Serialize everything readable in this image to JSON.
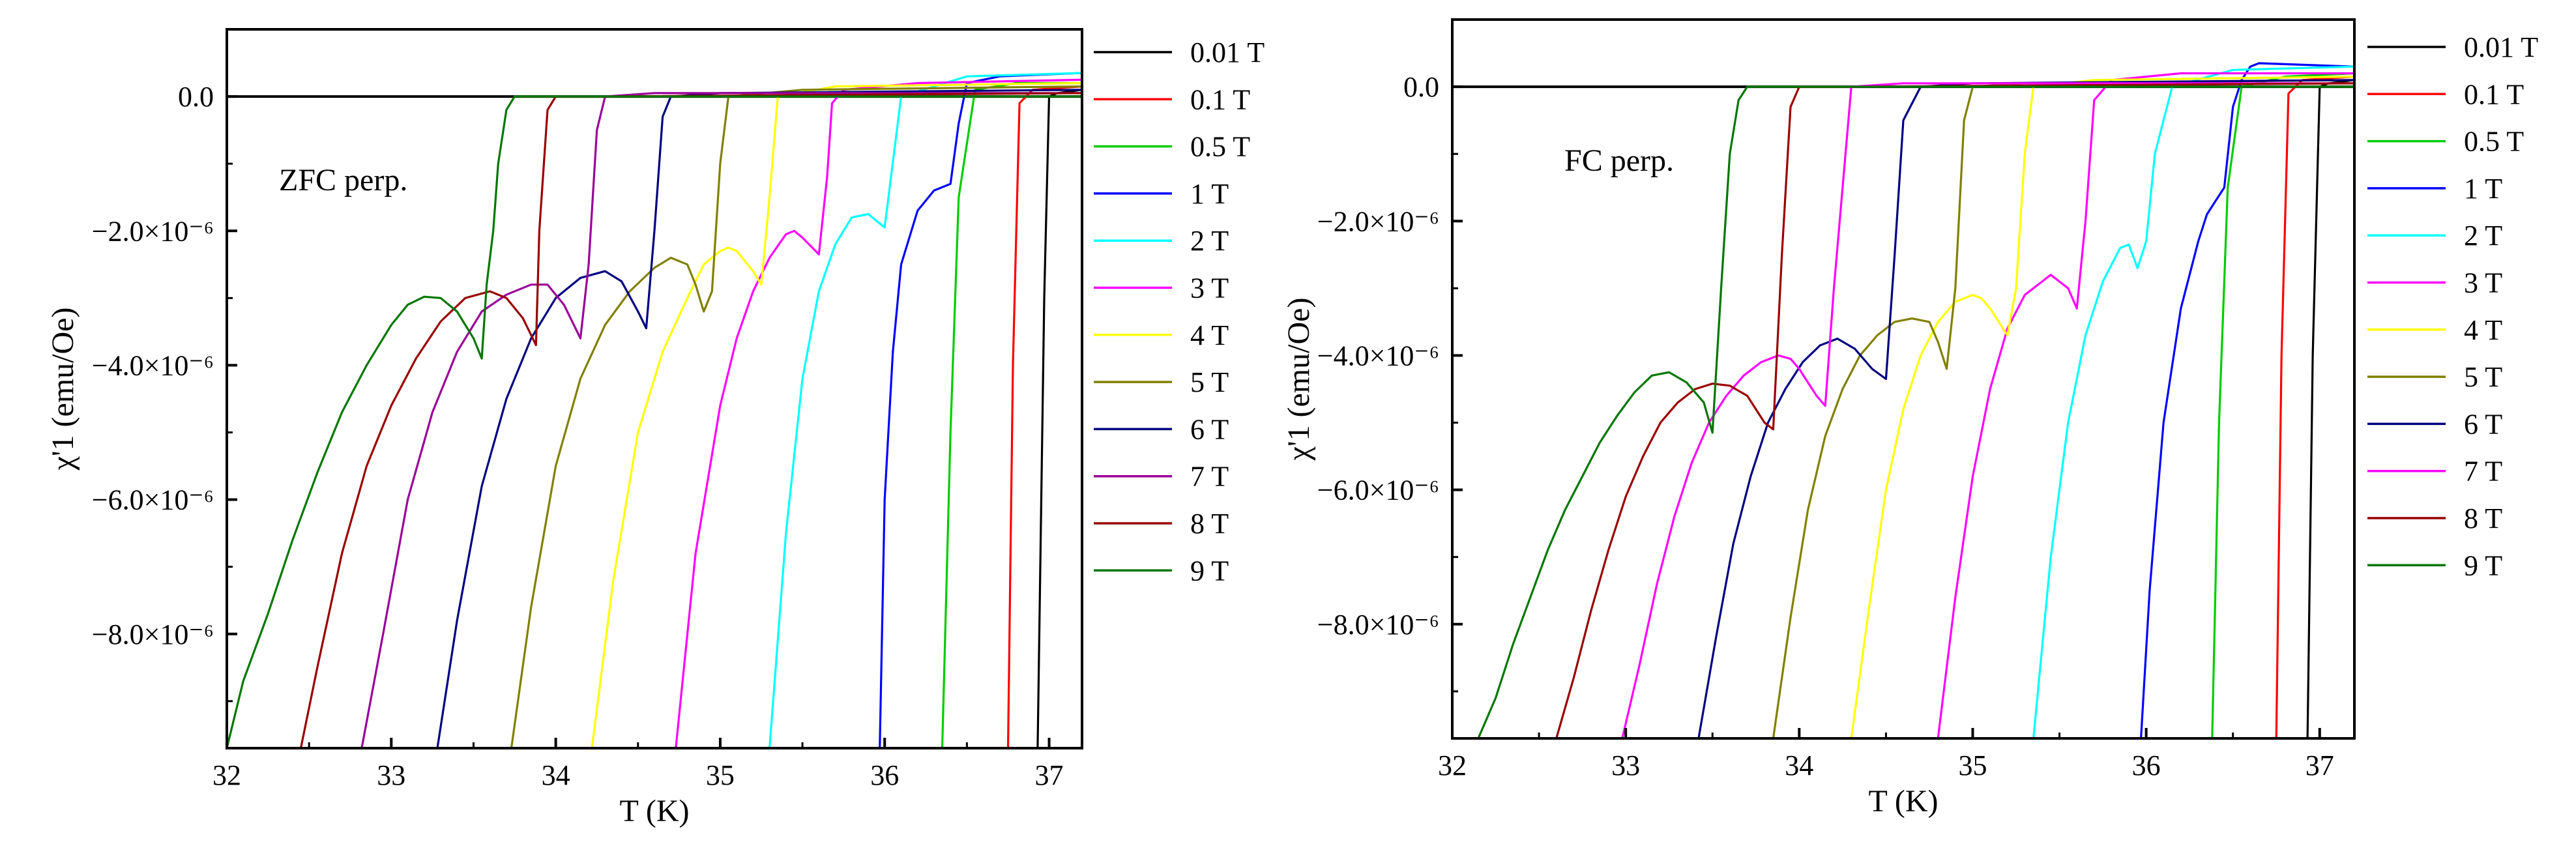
{
  "chart_data": [
    {
      "type": "line",
      "annotation": "ZFC perp.",
      "xlabel": "T (K)",
      "ylabel": "χ'1 (emu/Oe)",
      "xlim": [
        32,
        37.2
      ],
      "ylim": [
        -9.7e-06,
        1e-06
      ],
      "x_ticks": [
        "32",
        "33",
        "34",
        "35",
        "36",
        "37"
      ],
      "y_ticks": [
        "0.0",
        "−2.0×10⁻⁶",
        "−4.0×10⁻⁶",
        "−6.0×10⁻⁶",
        "−8.0×10⁻⁶"
      ],
      "zero_line": true,
      "legend_position": "right",
      "series": [
        {
          "name": "0.01 T",
          "color": "#000000",
          "x": [
            36.93,
            36.97,
            37.0,
            37.05,
            37.2
          ],
          "y": [
            -9.7e-06,
            -3e-06,
            0.0,
            5e-08,
            1e-07
          ]
        },
        {
          "name": "0.1 T",
          "color": "#ff0000",
          "x": [
            36.75,
            36.78,
            36.82,
            36.9,
            37.2
          ],
          "y": [
            -9.7e-06,
            -4e-06,
            -1e-07,
            1e-07,
            1.5e-07
          ]
        },
        {
          "name": "0.5 T",
          "color": "#00cc00",
          "x": [
            36.35,
            36.4,
            36.45,
            36.55,
            36.8,
            37.2
          ],
          "y": [
            -9.7e-06,
            -5e-06,
            -1.5e-06,
            1e-07,
            2e-07,
            2e-07
          ]
        },
        {
          "name": "1 T",
          "color": "#0000ff",
          "x": [
            35.97,
            36.0,
            36.05,
            36.1,
            36.2,
            36.3,
            36.4,
            36.45,
            36.5,
            36.7,
            37.2
          ],
          "y": [
            -9.7e-06,
            -6e-06,
            -3.8e-06,
            -2.5e-06,
            -1.7e-06,
            -1.4e-06,
            -1.3e-06,
            -4e-07,
            2e-07,
            3e-07,
            3.5e-07
          ]
        },
        {
          "name": "2 T",
          "color": "#00ffff",
          "x": [
            35.3,
            35.4,
            35.5,
            35.6,
            35.7,
            35.8,
            35.9,
            35.95,
            36.0,
            36.1,
            36.5,
            37.2
          ],
          "y": [
            -9.7e-06,
            -6.5e-06,
            -4.2e-06,
            -2.9e-06,
            -2.2e-06,
            -1.8e-06,
            -1.75e-06,
            -1.85e-06,
            -1.95e-06,
            0.0,
            3e-07,
            3.5e-07
          ]
        },
        {
          "name": "3 T",
          "color": "#ff00ff",
          "x": [
            34.73,
            34.85,
            35.0,
            35.1,
            35.2,
            35.3,
            35.4,
            35.45,
            35.5,
            35.6,
            35.65,
            35.68,
            35.75,
            36.2,
            37.2
          ],
          "y": [
            -9.7e-06,
            -6.8e-06,
            -4.6e-06,
            -3.6e-06,
            -2.9e-06,
            -2.4e-06,
            -2.05e-06,
            -2e-06,
            -2.1e-06,
            -2.35e-06,
            -1.2e-06,
            -1e-07,
            1e-07,
            2e-07,
            2.5e-07
          ]
        },
        {
          "name": "4 T",
          "color": "#ffff00",
          "x": [
            34.22,
            34.35,
            34.5,
            34.65,
            34.8,
            34.9,
            35.0,
            35.05,
            35.1,
            35.15,
            35.2,
            35.25,
            35.3,
            35.35,
            35.7,
            37.2
          ],
          "y": [
            -9.7e-06,
            -7.2e-06,
            -5e-06,
            -3.8e-06,
            -3e-06,
            -2.5e-06,
            -2.3e-06,
            -2.25e-06,
            -2.3e-06,
            -2.45e-06,
            -2.6e-06,
            -2.8e-06,
            -1.5e-06,
            0.0,
            1.5e-07,
            2e-07
          ]
        },
        {
          "name": "5 T",
          "color": "#808000",
          "x": [
            33.73,
            33.85,
            34.0,
            34.15,
            34.3,
            34.45,
            34.6,
            34.7,
            34.8,
            34.85,
            34.9,
            34.95,
            35.0,
            35.05,
            35.5,
            37.2
          ],
          "y": [
            -9.7e-06,
            -7.6e-06,
            -5.5e-06,
            -4.2e-06,
            -3.4e-06,
            -2.9e-06,
            -2.55e-06,
            -2.4e-06,
            -2.5e-06,
            -2.8e-06,
            -3.2e-06,
            -2.9e-06,
            -1e-06,
            0.0,
            1e-07,
            1.5e-07
          ]
        },
        {
          "name": "6 T",
          "color": "#000080",
          "x": [
            33.28,
            33.4,
            33.55,
            33.7,
            33.85,
            34.0,
            34.15,
            34.3,
            34.4,
            34.5,
            34.55,
            34.6,
            34.65,
            34.7,
            35.0,
            37.2
          ],
          "y": [
            -9.7e-06,
            -7.8e-06,
            -5.8e-06,
            -4.5e-06,
            -3.6e-06,
            -3e-06,
            -2.7e-06,
            -2.6e-06,
            -2.75e-06,
            -3.2e-06,
            -3.45e-06,
            -2e-06,
            -3e-07,
            0.0,
            5e-08,
            1e-07
          ]
        },
        {
          "name": "7 T",
          "color": "#990099",
          "x": [
            32.82,
            32.95,
            33.1,
            33.25,
            33.4,
            33.55,
            33.7,
            33.85,
            33.95,
            34.05,
            34.15,
            34.2,
            34.25,
            34.3,
            34.6,
            37.2
          ],
          "y": [
            -9.7e-06,
            -8e-06,
            -6e-06,
            -4.7e-06,
            -3.8e-06,
            -3.2e-06,
            -2.95e-06,
            -2.8e-06,
            -2.8e-06,
            -3.1e-06,
            -3.6e-06,
            -2.5e-06,
            -5e-07,
            0.0,
            5e-08,
            5e-08
          ]
        },
        {
          "name": "8 T",
          "color": "#990000",
          "x": [
            32.45,
            32.55,
            32.7,
            32.85,
            33.0,
            33.15,
            33.3,
            33.45,
            33.6,
            33.7,
            33.8,
            33.88,
            33.9,
            33.95,
            34.0,
            34.3,
            37.2
          ],
          "y": [
            -9.7e-06,
            -8.5e-06,
            -6.8e-06,
            -5.5e-06,
            -4.6e-06,
            -3.9e-06,
            -3.35e-06,
            -3e-06,
            -2.9e-06,
            -3e-06,
            -3.3e-06,
            -3.7e-06,
            -2e-06,
            -2e-07,
            0.0,
            0.0,
            5e-08
          ]
        },
        {
          "name": "9 T",
          "color": "#007700",
          "x": [
            32.0,
            32.1,
            32.25,
            32.4,
            32.55,
            32.7,
            32.85,
            33.0,
            33.1,
            33.2,
            33.3,
            33.4,
            33.5,
            33.55,
            33.58,
            33.62,
            33.65,
            33.7,
            33.75,
            33.85,
            34.0,
            37.2
          ],
          "y": [
            -9.7e-06,
            -8.7e-06,
            -7.7e-06,
            -6.6e-06,
            -5.6e-06,
            -4.7e-06,
            -4e-06,
            -3.4e-06,
            -3.1e-06,
            -2.98e-06,
            -3e-06,
            -3.2e-06,
            -3.6e-06,
            -3.9e-06,
            -2.8e-06,
            -2e-06,
            -1e-06,
            -2e-07,
            0.0,
            0.0,
            0.0,
            0.0
          ]
        }
      ]
    },
    {
      "type": "line",
      "annotation": "FC perp.",
      "xlabel": "T (K)",
      "ylabel": "χ'1 (emu/Oe)",
      "xlim": [
        32,
        37.2
      ],
      "ylim": [
        -9.7e-06,
        1e-06
      ],
      "x_ticks": [
        "32",
        "33",
        "34",
        "35",
        "36",
        "37"
      ],
      "y_ticks": [
        "0.0",
        "−2.0×10⁻⁶",
        "−4.0×10⁻⁶",
        "−6.0×10⁻⁶",
        "−8.0×10⁻⁶"
      ],
      "zero_line": true,
      "legend_position": "right",
      "series": [
        {
          "name": "0.01 T",
          "color": "#000000",
          "x": [
            36.93,
            36.96,
            37.0,
            37.05,
            37.2
          ],
          "y": [
            -9.7e-06,
            -4e-06,
            0.0,
            5e-08,
            1e-07
          ]
        },
        {
          "name": "0.1 T",
          "color": "#ff0000",
          "x": [
            36.75,
            36.78,
            36.82,
            36.9,
            37.2
          ],
          "y": [
            -9.7e-06,
            -4e-06,
            -1e-07,
            1e-07,
            1.5e-07
          ]
        },
        {
          "name": "0.5 T",
          "color": "#00cc00",
          "x": [
            36.38,
            36.42,
            36.47,
            36.55,
            36.8,
            37.2
          ],
          "y": [
            -9.7e-06,
            -5e-06,
            -1.5e-06,
            0.0,
            1.5e-07,
            2e-07
          ]
        },
        {
          "name": "1 T",
          "color": "#0000ff",
          "x": [
            35.97,
            36.02,
            36.1,
            36.2,
            36.3,
            36.35,
            36.4,
            36.45,
            36.5,
            36.55,
            36.6,
            36.65,
            37.2
          ],
          "y": [
            -9.7e-06,
            -7.5e-06,
            -5e-06,
            -3.3e-06,
            -2.3e-06,
            -1.9e-06,
            -1.7e-06,
            -1.5e-06,
            -3e-07,
            1e-07,
            3e-07,
            3.5e-07,
            3e-07
          ]
        },
        {
          "name": "2 T",
          "color": "#00ffff",
          "x": [
            35.35,
            35.45,
            35.55,
            35.65,
            35.75,
            35.85,
            35.9,
            35.95,
            36.0,
            36.05,
            36.15,
            36.5,
            37.2
          ],
          "y": [
            -9.7e-06,
            -7e-06,
            -5e-06,
            -3.7e-06,
            -2.9e-06,
            -2.4e-06,
            -2.35e-06,
            -2.7e-06,
            -2.3e-06,
            -1e-06,
            0.0,
            2.5e-07,
            3e-07
          ]
        },
        {
          "name": "3 T",
          "color": "#ff00ff",
          "x": [
            34.8,
            34.9,
            35.0,
            35.1,
            35.2,
            35.3,
            35.4,
            35.45,
            35.5,
            35.55,
            35.6,
            35.65,
            35.7,
            35.8,
            36.2,
            37.2
          ],
          "y": [
            -9.7e-06,
            -7.6e-06,
            -5.8e-06,
            -4.5e-06,
            -3.6e-06,
            -3.1e-06,
            -2.9e-06,
            -2.8e-06,
            -2.9e-06,
            -3e-06,
            -3.3e-06,
            -2e-06,
            -2e-07,
            1e-07,
            2e-07,
            2e-07
          ]
        },
        {
          "name": "4 T",
          "color": "#ffff00",
          "x": [
            34.3,
            34.4,
            34.5,
            34.6,
            34.7,
            34.8,
            34.9,
            35.0,
            35.05,
            35.1,
            35.2,
            35.25,
            35.3,
            35.35,
            35.7,
            37.2
          ],
          "y": [
            -9.7e-06,
            -7.8e-06,
            -6e-06,
            -4.8e-06,
            -4e-06,
            -3.5e-06,
            -3.2e-06,
            -3.1e-06,
            -3.15e-06,
            -3.3e-06,
            -3.7e-06,
            -3e-06,
            -1e-06,
            0.0,
            1e-07,
            1.5e-07
          ]
        },
        {
          "name": "5 T",
          "color": "#808000",
          "x": [
            33.85,
            33.95,
            34.05,
            34.15,
            34.25,
            34.35,
            34.45,
            34.55,
            34.65,
            34.75,
            34.8,
            34.85,
            34.9,
            34.95,
            35.0,
            35.3,
            37.2
          ],
          "y": [
            -9.7e-06,
            -7.9e-06,
            -6.3e-06,
            -5.2e-06,
            -4.5e-06,
            -4e-06,
            -3.7e-06,
            -3.5e-06,
            -3.45e-06,
            -3.5e-06,
            -3.8e-06,
            -4.2e-06,
            -3e-06,
            -5e-07,
            0.0,
            5e-08,
            1e-07
          ]
        },
        {
          "name": "6 T",
          "color": "#000080",
          "x": [
            33.42,
            33.52,
            33.62,
            33.72,
            33.82,
            33.92,
            34.02,
            34.12,
            34.22,
            34.32,
            34.42,
            34.5,
            34.55,
            34.6,
            34.7,
            35.0,
            37.2
          ],
          "y": [
            -9.7e-06,
            -8.2e-06,
            -6.8e-06,
            -5.8e-06,
            -5e-06,
            -4.5e-06,
            -4.1e-06,
            -3.85e-06,
            -3.75e-06,
            -3.9e-06,
            -4.2e-06,
            -4.35e-06,
            -2.5e-06,
            -5e-07,
            0.0,
            5e-08,
            1e-07
          ]
        },
        {
          "name": "7 T",
          "color": "#ff00ff",
          "x": [
            32.98,
            33.08,
            33.18,
            33.28,
            33.38,
            33.48,
            33.58,
            33.68,
            33.78,
            33.88,
            33.95,
            34.0,
            34.05,
            34.1,
            34.15,
            34.2,
            34.3,
            34.6,
            37.2
          ],
          "y": [
            -9.7e-06,
            -8.6e-06,
            -7.4e-06,
            -6.4e-06,
            -5.6e-06,
            -5e-06,
            -4.6e-06,
            -4.3e-06,
            -4.1e-06,
            -4e-06,
            -4.05e-06,
            -4.2e-06,
            -4.4e-06,
            -4.6e-06,
            -4.75e-06,
            -3e-06,
            0.0,
            5e-08,
            5e-08
          ]
        },
        {
          "name": "8 T",
          "color": "#990000",
          "x": [
            32.6,
            32.7,
            32.8,
            32.9,
            33.0,
            33.1,
            33.2,
            33.3,
            33.4,
            33.5,
            33.6,
            33.7,
            33.75,
            33.8,
            33.85,
            33.9,
            33.95,
            34.0,
            34.3,
            37.2
          ],
          "y": [
            -9.7e-06,
            -8.8e-06,
            -7.8e-06,
            -6.9e-06,
            -6.1e-06,
            -5.5e-06,
            -5e-06,
            -4.7e-06,
            -4.5e-06,
            -4.42e-06,
            -4.45e-06,
            -4.6e-06,
            -4.8e-06,
            -5e-06,
            -5.1e-06,
            -2.5e-06,
            -3e-07,
            0.0,
            0.0,
            5e-08
          ]
        },
        {
          "name": "9 T",
          "color": "#007700",
          "x": [
            32.15,
            32.25,
            32.35,
            32.45,
            32.55,
            32.65,
            32.75,
            32.85,
            32.95,
            33.05,
            33.15,
            33.25,
            33.35,
            33.45,
            33.5,
            33.55,
            33.6,
            33.65,
            33.7,
            33.8,
            34.0,
            37.2
          ],
          "y": [
            -9.7e-06,
            -9.1e-06,
            -8.3e-06,
            -7.6e-06,
            -6.9e-06,
            -6.3e-06,
            -5.8e-06,
            -5.3e-06,
            -4.9e-06,
            -4.55e-06,
            -4.3e-06,
            -4.25e-06,
            -4.4e-06,
            -4.7e-06,
            -5.15e-06,
            -3e-06,
            -1e-06,
            -2e-07,
            0.0,
            0.0,
            0.0,
            0.0
          ]
        }
      ]
    }
  ]
}
